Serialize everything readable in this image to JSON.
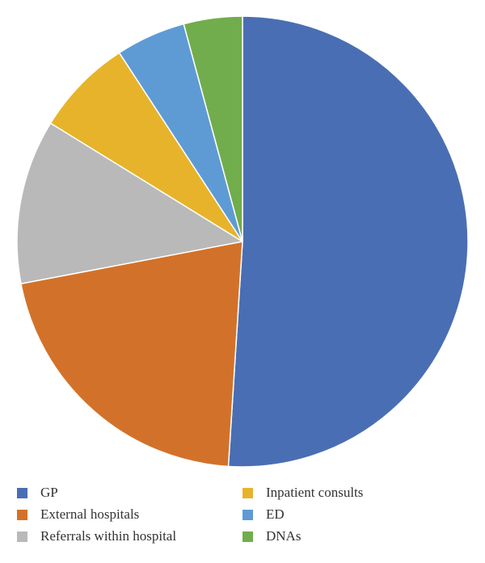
{
  "chart_data": {
    "type": "pie",
    "title": "",
    "slices": [
      {
        "label": "GP",
        "value": 51.0,
        "color": "#4A6EB3"
      },
      {
        "label": "External hospitals",
        "value": 21.0,
        "color": "#D2722A"
      },
      {
        "label": "Referrals within hospital",
        "value": 11.8,
        "color": "#B9B9B9"
      },
      {
        "label": "Inpatient consults",
        "value": 7.0,
        "color": "#E7B32A"
      },
      {
        "label": "ED",
        "value": 5.0,
        "color": "#5E9BD4"
      },
      {
        "label": "DNAs",
        "value": 4.2,
        "color": "#71AD4C"
      }
    ],
    "legend_placement": "bottom",
    "start_angle": "12 o'clock",
    "direction": "clockwise"
  },
  "legend": {
    "items": [
      {
        "label": "GP",
        "color": "#4A6EB3"
      },
      {
        "label": "External hospitals",
        "color": "#D2722A"
      },
      {
        "label": "Referrals within hospital",
        "color": "#B9B9B9"
      },
      {
        "label": "Inpatient consults",
        "color": "#E7B32A"
      },
      {
        "label": "ED",
        "color": "#5E9BD4"
      },
      {
        "label": "DNAs",
        "color": "#71AD4C"
      }
    ]
  }
}
